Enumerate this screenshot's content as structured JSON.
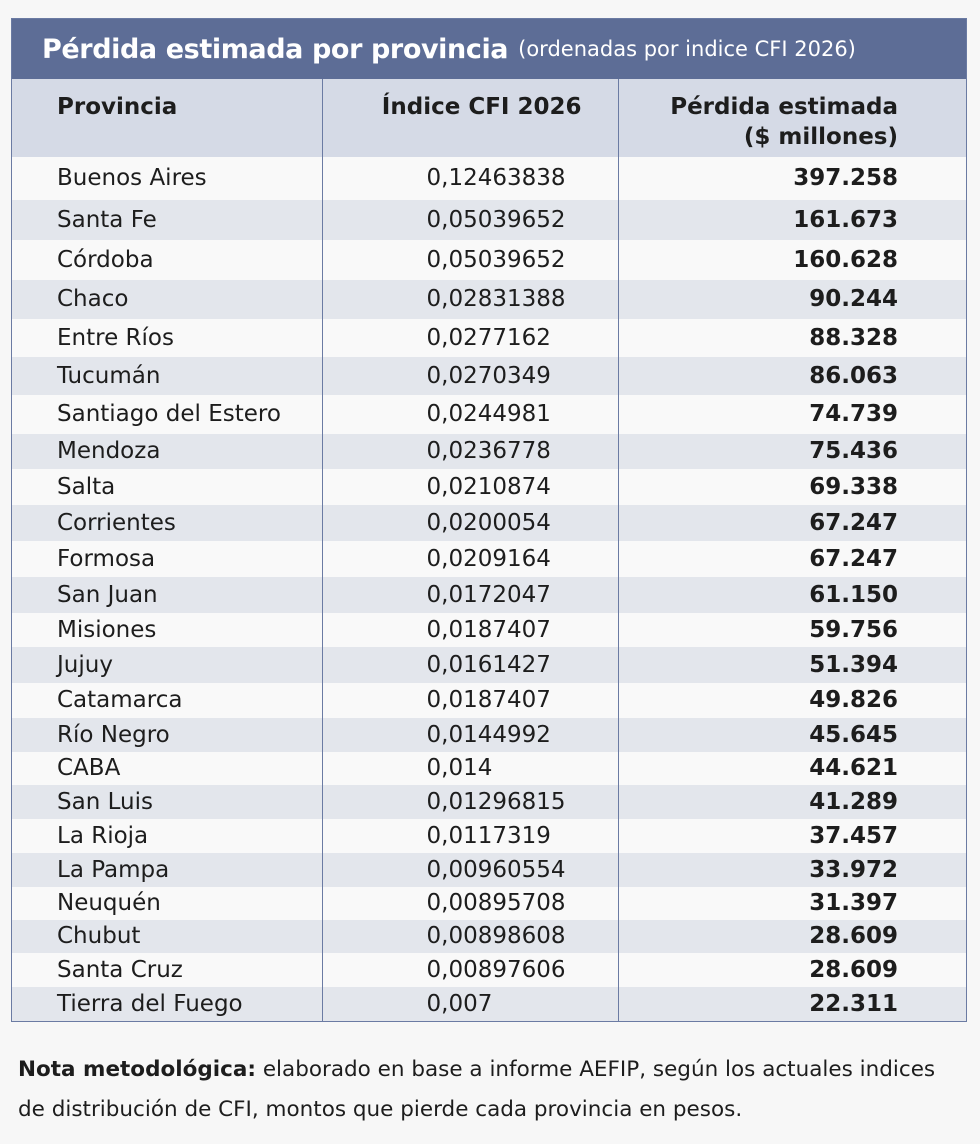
{
  "title": {
    "main": "Pérdida estimada por provincia",
    "sub": "(ordenadas por indice CFI 2026)"
  },
  "headers": {
    "provincia": "Provincia",
    "indice": "Índice CFI 2026",
    "perdida_line1": "Pérdida estimada",
    "perdida_line2": "($ millones)"
  },
  "rows": [
    {
      "provincia": "Buenos Aires",
      "indice": "0,12463838",
      "perdida": "397.258"
    },
    {
      "provincia": "Santa Fe",
      "indice": "0,05039652",
      "perdida": "161.673"
    },
    {
      "provincia": "Córdoba",
      "indice": "0,05039652",
      "perdida": "160.628"
    },
    {
      "provincia": "Chaco",
      "indice": "0,02831388",
      "perdida": "90.244"
    },
    {
      "provincia": "Entre Ríos",
      "indice": "0,0277162",
      "perdida": "88.328"
    },
    {
      "provincia": "Tucumán",
      "indice": "0,0270349",
      "perdida": "86.063"
    },
    {
      "provincia": "Santiago del Estero",
      "indice": "0,0244981",
      "perdida": "74.739"
    },
    {
      "provincia": "Mendoza",
      "indice": "0,0236778",
      "perdida": "75.436"
    },
    {
      "provincia": "Salta",
      "indice": "0,0210874",
      "perdida": "69.338"
    },
    {
      "provincia": "Corrientes",
      "indice": "0,0200054",
      "perdida": "67.247"
    },
    {
      "provincia": "Formosa",
      "indice": "0,0209164",
      "perdida": "67.247"
    },
    {
      "provincia": "San Juan",
      "indice": "0,0172047",
      "perdida": "61.150"
    },
    {
      "provincia": "Misiones",
      "indice": "0,0187407",
      "perdida": "59.756"
    },
    {
      "provincia": "Jujuy",
      "indice": "0,0161427",
      "perdida": "51.394"
    },
    {
      "provincia": "Catamarca",
      "indice": "0,0187407",
      "perdida": "49.826"
    },
    {
      "provincia": "Río Negro",
      "indice": "0,0144992",
      "perdida": "45.645"
    },
    {
      "provincia": "CABA",
      "indice": "0,014",
      "perdida": "44.621"
    },
    {
      "provincia": "San Luis",
      "indice": "0,01296815",
      "perdida": "41.289"
    },
    {
      "provincia": "La Rioja",
      "indice": "0,0117319",
      "perdida": "37.457"
    },
    {
      "provincia": "La Pampa",
      "indice": "0,00960554",
      "perdida": "33.972"
    },
    {
      "provincia": "Neuquén",
      "indice": "0,00895708",
      "perdida": "31.397"
    },
    {
      "provincia": "Chubut",
      "indice": "0,00898608",
      "perdida": "28.609"
    },
    {
      "provincia": "Santa Cruz",
      "indice": "0,00897606",
      "perdida": "28.609"
    },
    {
      "provincia": "Tierra del Fuego",
      "indice": "0,007",
      "perdida": "22.311"
    }
  ],
  "note": {
    "label": "Nota metodológica:",
    "text": "elaborado en base a informe AEFIP, según los actuales indices de distribución de CFI, montos que pierde cada provincia en pesos."
  },
  "colors": {
    "title_bar": "#5d6d96",
    "header_bg": "#d5dae6",
    "stripe": "#e3e6ec",
    "border": "#6b7ba3"
  }
}
